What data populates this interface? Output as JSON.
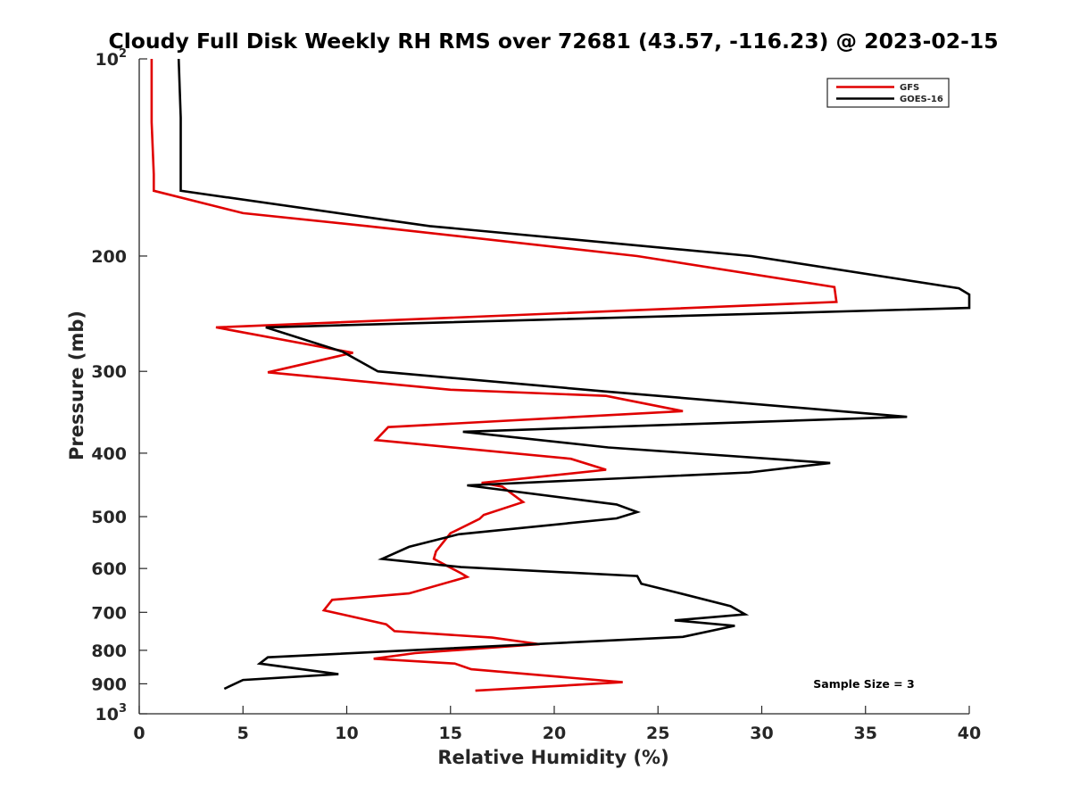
{
  "chart_data": {
    "type": "line",
    "title": "Cloudy Full Disk Weekly RH RMS over 72681 (43.57, -116.23) @ 2023-02-15",
    "xlabel": "Relative Humidity (%)",
    "ylabel": "Pressure (mb)",
    "xlim": [
      0,
      40
    ],
    "ylim": [
      100,
      1000
    ],
    "y_scale": "log",
    "y_reversed": true,
    "grid": false,
    "legend_position": "top-right",
    "x_ticks": [
      0,
      5,
      10,
      15,
      20,
      25,
      30,
      35,
      40
    ],
    "y_ticks": [
      {
        "value": 100,
        "label": "10",
        "sup": "2"
      },
      {
        "value": 200,
        "label": "200"
      },
      {
        "value": 300,
        "label": "300"
      },
      {
        "value": 400,
        "label": "400"
      },
      {
        "value": 500,
        "label": "500"
      },
      {
        "value": 600,
        "label": "600"
      },
      {
        "value": 700,
        "label": "700"
      },
      {
        "value": 800,
        "label": "800"
      },
      {
        "value": 900,
        "label": "900"
      },
      {
        "value": 1000,
        "label": "10",
        "sup": "3"
      }
    ],
    "annotation": "Sample Size = 3",
    "series": [
      {
        "name": "GFS",
        "color": "#e00000",
        "points": [
          [
            0.6,
            100
          ],
          [
            0.6,
            125
          ],
          [
            0.7,
            150
          ],
          [
            0.7,
            159
          ],
          [
            5.0,
            172
          ],
          [
            11.0,
            180
          ],
          [
            24.0,
            200
          ],
          [
            33.5,
            223
          ],
          [
            33.6,
            235
          ],
          [
            3.7,
            257
          ],
          [
            10.3,
            281
          ],
          [
            6.2,
            301
          ],
          [
            15.0,
            320
          ],
          [
            22.5,
            327
          ],
          [
            26.2,
            345
          ],
          [
            12.0,
            365
          ],
          [
            11.4,
            382
          ],
          [
            20.8,
            408
          ],
          [
            22.5,
            424
          ],
          [
            16.5,
            444
          ],
          [
            17.5,
            450
          ],
          [
            18.5,
            475
          ],
          [
            16.6,
            497
          ],
          [
            16.4,
            504
          ],
          [
            15.0,
            530
          ],
          [
            14.3,
            565
          ],
          [
            14.2,
            580
          ],
          [
            15.5,
            610
          ],
          [
            15.8,
            618
          ],
          [
            13.0,
            655
          ],
          [
            9.3,
            670
          ],
          [
            8.9,
            695
          ],
          [
            11.9,
            730
          ],
          [
            12.3,
            748
          ],
          [
            17.0,
            765
          ],
          [
            19.3,
            783
          ],
          [
            13.3,
            808
          ],
          [
            11.3,
            824
          ],
          [
            15.2,
            838
          ],
          [
            16.0,
            855
          ],
          [
            23.3,
            895
          ],
          [
            16.2,
            922
          ]
        ]
      },
      {
        "name": "GOES-16",
        "color": "#000000",
        "points": [
          [
            1.9,
            100
          ],
          [
            2.0,
            123
          ],
          [
            2.0,
            159
          ],
          [
            14.0,
            180
          ],
          [
            29.5,
            200
          ],
          [
            39.5,
            224
          ],
          [
            40.0,
            229
          ],
          [
            40.0,
            240
          ],
          [
            6.1,
            257
          ],
          [
            9.8,
            280
          ],
          [
            11.5,
            300
          ],
          [
            22.5,
            322
          ],
          [
            37.0,
            352
          ],
          [
            15.6,
            371
          ],
          [
            22.6,
            392
          ],
          [
            33.3,
            414
          ],
          [
            29.4,
            428
          ],
          [
            15.8,
            448
          ],
          [
            23.0,
            479
          ],
          [
            24.0,
            492
          ],
          [
            23.0,
            503
          ],
          [
            15.4,
            532
          ],
          [
            13.0,
            556
          ],
          [
            11.7,
            580
          ],
          [
            15.5,
            597
          ],
          [
            24.0,
            616
          ],
          [
            24.2,
            633
          ],
          [
            26.0,
            654
          ],
          [
            28.5,
            685
          ],
          [
            29.2,
            705
          ],
          [
            25.8,
            720
          ],
          [
            28.7,
            734
          ],
          [
            26.2,
            763
          ],
          [
            6.2,
            820
          ],
          [
            5.8,
            838
          ],
          [
            9.6,
            870
          ],
          [
            5.0,
            888
          ],
          [
            4.1,
            916
          ]
        ]
      }
    ]
  }
}
